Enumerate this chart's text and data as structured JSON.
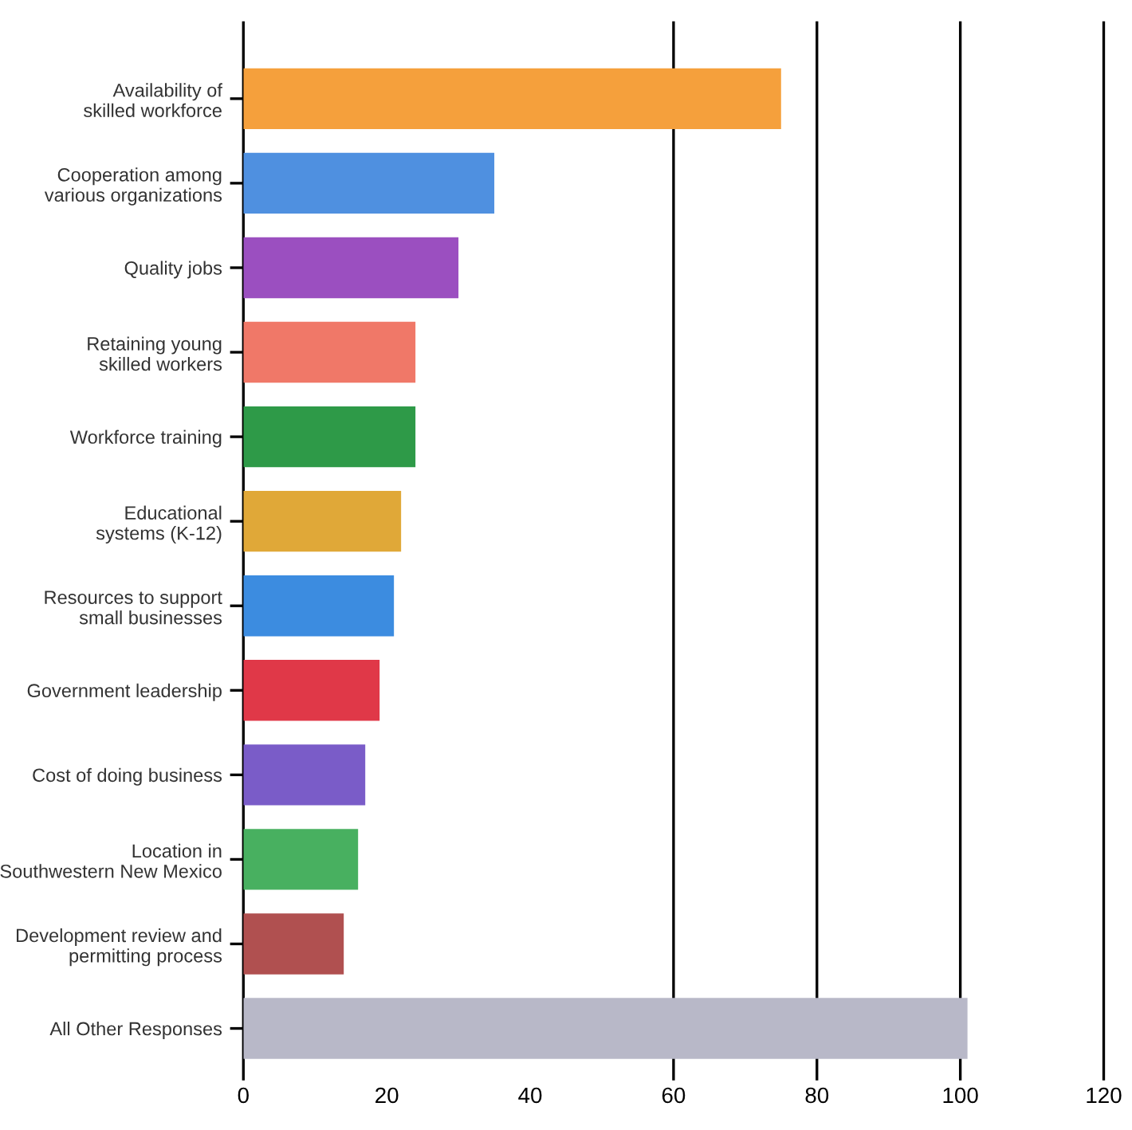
{
  "chart_data": {
    "type": "bar",
    "orientation": "horizontal",
    "categories": [
      "Availability of\nskilled workforce",
      "Cooperation among\nvarious organizations",
      "Quality jobs",
      "Retaining young\nskilled workers",
      "Workforce training",
      "Educational\nsystems (K-12)",
      "Resources to support\nsmall businesses",
      "Government leadership",
      "Cost of doing business",
      "Location in\nSouthwestern New Mexico",
      "Development review and\npermitting process",
      "All Other Responses"
    ],
    "values": [
      75,
      35,
      30,
      24,
      24,
      22,
      21,
      19,
      17,
      16,
      14,
      101
    ],
    "colors": [
      "#f5a03c",
      "#4f90e0",
      "#9b4fc0",
      "#f07868",
      "#2e9a48",
      "#e0a838",
      "#3c8ce0",
      "#e03848",
      "#7a5cc8",
      "#48b060",
      "#b05050",
      "#b8b8c8"
    ],
    "xlim": [
      0,
      120
    ],
    "xticks": [
      0,
      20,
      40,
      60,
      80,
      100,
      120
    ],
    "ref_lines": [
      {
        "axis": "x",
        "value": 60,
        "color": "#000000"
      },
      {
        "axis": "x",
        "value": 80,
        "color": "#000000"
      },
      {
        "axis": "x",
        "value": 100,
        "color": "#000000"
      }
    ],
    "grid": false,
    "legend": false
  }
}
